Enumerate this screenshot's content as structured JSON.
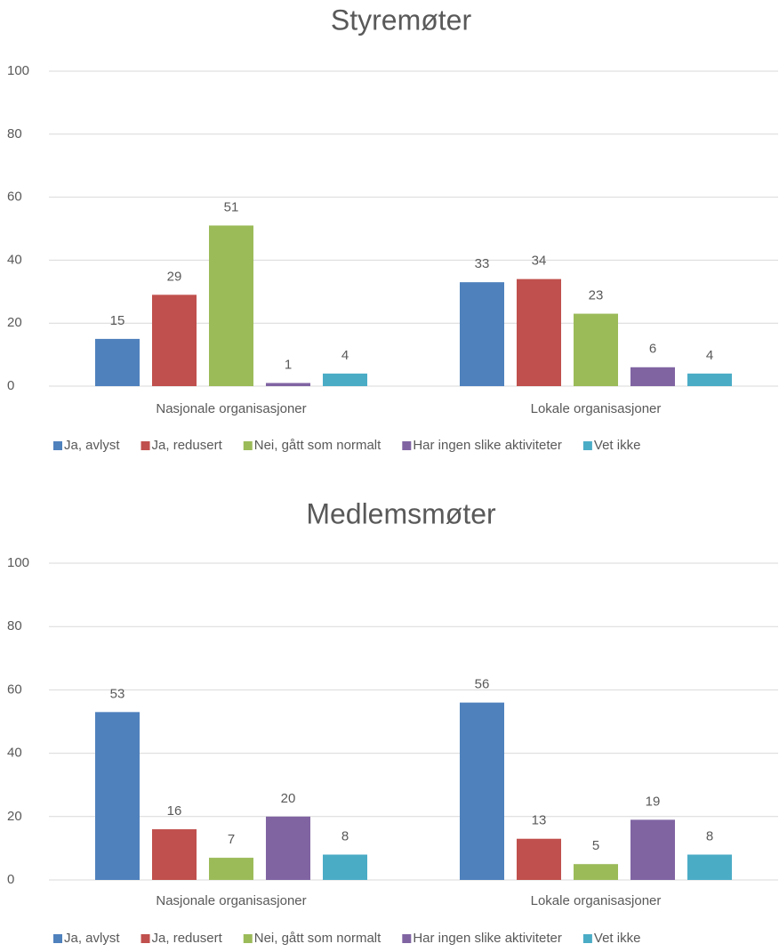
{
  "chart_data": [
    {
      "type": "bar",
      "title": "Styremøter",
      "categories": [
        "Nasjonale organisasjoner",
        "Lokale organisasjoner"
      ],
      "series": [
        {
          "name": "Ja, avlyst",
          "color": "#4f81bd",
          "values": [
            15,
            33
          ]
        },
        {
          "name": "Ja, redusert",
          "color": "#c0504d",
          "values": [
            29,
            34
          ]
        },
        {
          "name": "Nei, gått som normalt",
          "color": "#9bbb59",
          "values": [
            51,
            23
          ]
        },
        {
          "name": "Har ingen slike aktiviteter",
          "color": "#8064a2",
          "values": [
            1,
            6
          ]
        },
        {
          "name": "Vet ikke",
          "color": "#4bacc6",
          "values": [
            4,
            4
          ]
        }
      ],
      "ylim": [
        0,
        100
      ],
      "yticks": [
        0,
        20,
        40,
        60,
        80,
        100
      ],
      "grid": true,
      "legend": "bottom"
    },
    {
      "type": "bar",
      "title": "Medlemsmøter",
      "categories": [
        "Nasjonale organisasjoner",
        "Lokale organisasjoner"
      ],
      "series": [
        {
          "name": "Ja, avlyst",
          "color": "#4f81bd",
          "values": [
            53,
            56
          ]
        },
        {
          "name": "Ja, redusert",
          "color": "#c0504d",
          "values": [
            16,
            13
          ]
        },
        {
          "name": "Nei, gått som normalt",
          "color": "#9bbb59",
          "values": [
            7,
            5
          ]
        },
        {
          "name": "Har ingen slike aktiviteter",
          "color": "#8064a2",
          "values": [
            20,
            19
          ]
        },
        {
          "name": "Vet ikke",
          "color": "#4bacc6",
          "values": [
            8,
            8
          ]
        }
      ],
      "ylim": [
        0,
        100
      ],
      "yticks": [
        0,
        20,
        40,
        60,
        80,
        100
      ],
      "grid": true,
      "legend": "bottom"
    }
  ]
}
